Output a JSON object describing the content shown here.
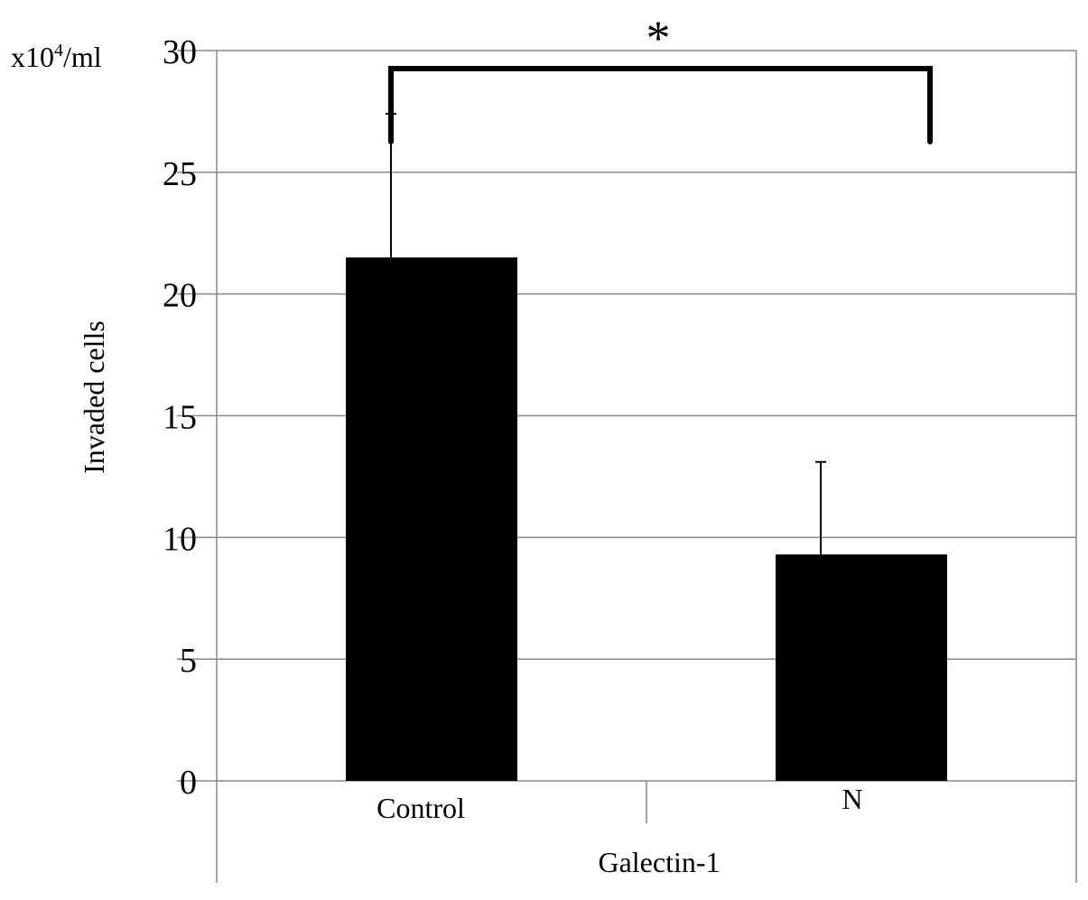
{
  "chart_data": {
    "type": "bar",
    "title": "",
    "unit_label": "x10⁴/ml",
    "ylabel": "Invaded cells",
    "xlabel": "Galectin-1",
    "categories": [
      "Control",
      "N"
    ],
    "values": [
      21.5,
      9.3
    ],
    "error_upper": [
      27.4,
      13.1
    ],
    "ylim": [
      0,
      30
    ],
    "yticks": [
      0,
      5,
      10,
      15,
      20,
      25,
      30
    ],
    "grid": true,
    "bar_color": "#000000",
    "significance": {
      "between": [
        "Control",
        "N"
      ],
      "label": "*"
    }
  }
}
